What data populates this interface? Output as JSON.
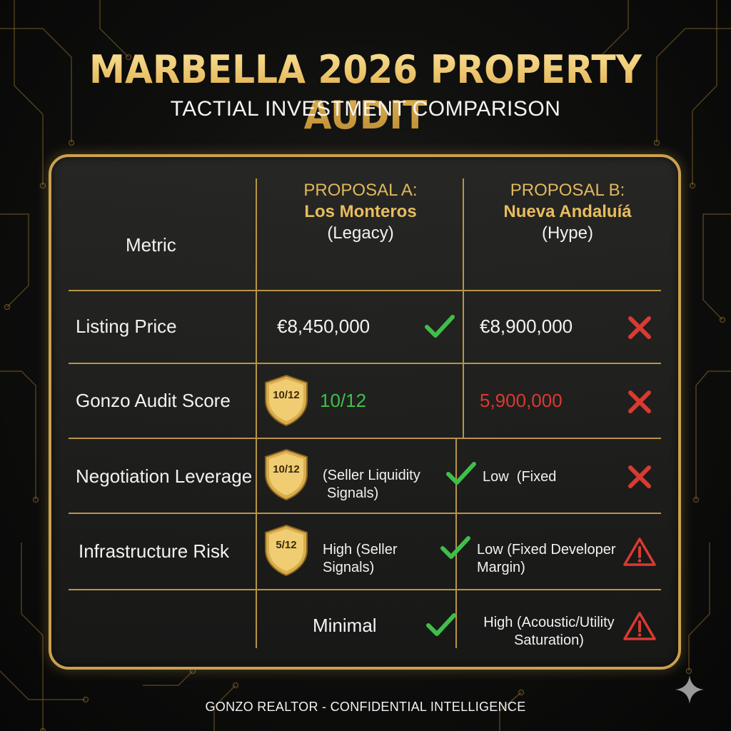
{
  "header": {
    "title": "MARBELLA 2026 PROPERTY AUDIT",
    "subtitle": "TACTIAL INVESTMENT COMPARISON"
  },
  "table": {
    "metric_header": "Metric",
    "proposal_a": {
      "label": "PROPOSAL A:",
      "name": "Los Monteros",
      "tag": "(Legacy)"
    },
    "proposal_b": {
      "label": "PROPOSAL B:",
      "name": "Nueva Andaluíá",
      "tag": "(Hype)"
    },
    "rows": [
      {
        "metric": "Listing Price",
        "a_value": "€8,450,000",
        "a_icon": "check-icon",
        "b_value": "€8,900,000",
        "b_icon": "cross-icon"
      },
      {
        "metric": "Gonzo Audit Score",
        "a_badge": "10/12",
        "a_value": "10/12",
        "b_value": "5,900,000",
        "b_icon": "cross-icon"
      },
      {
        "metric": "Negotiation Leverage",
        "a_badge": "10/12",
        "a_line1": "(Seller Liquidity",
        "a_line2": "Signals)",
        "a_icon": "check-icon",
        "b_value": "Low  (Fixed",
        "b_icon": "cross-icon"
      },
      {
        "metric": "Infrastructure Risk",
        "a_badge": "5/12",
        "a_line1": "High (Seller",
        "a_line2": "Signals)",
        "a_icon": "check-icon",
        "b_line1": "Low (Fixed Developer",
        "b_line2": "Margin)",
        "b_icon": "warning-icon"
      },
      {
        "metric": "",
        "a_value": "Minimal",
        "a_icon": "check-icon",
        "b_line1": "High (Acoustic/Utility",
        "b_line2": "Saturation)",
        "b_icon": "warning-icon"
      }
    ]
  },
  "footer": {
    "text": "GONZO REALTOR - CONFIDENTIAL INTELLIGENCE"
  },
  "colors": {
    "gold": "#c9a14e",
    "green": "#3fbf4a",
    "red": "#d93a31",
    "background": "#0e0e0d"
  }
}
